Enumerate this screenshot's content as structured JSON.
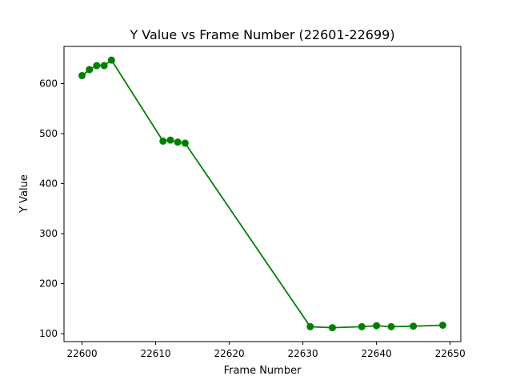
{
  "chart_data": {
    "type": "line",
    "title": "Y Value vs Frame Number (22601-22699)",
    "xlabel": "Frame Number",
    "ylabel": "Y Value",
    "xlim": [
      22597.55,
      22651.45
    ],
    "ylim": [
      84.2,
      674.4
    ],
    "x_ticks": [
      22600,
      22610,
      22620,
      22630,
      22640,
      22650
    ],
    "y_ticks": [
      100,
      200,
      300,
      400,
      500,
      600
    ],
    "grid": false,
    "legend": "none",
    "colors": {
      "series": "#008000"
    },
    "series": [
      {
        "x": [
          22600,
          22601,
          22602,
          22603,
          22604,
          22611,
          22612,
          22613,
          22614,
          22631,
          22634,
          22638,
          22640,
          22642,
          22645,
          22649
        ],
        "y": [
          616,
          628,
          636,
          636,
          647,
          485,
          487,
          483,
          481,
          114,
          112,
          114,
          116,
          114,
          115,
          117
        ]
      }
    ]
  }
}
